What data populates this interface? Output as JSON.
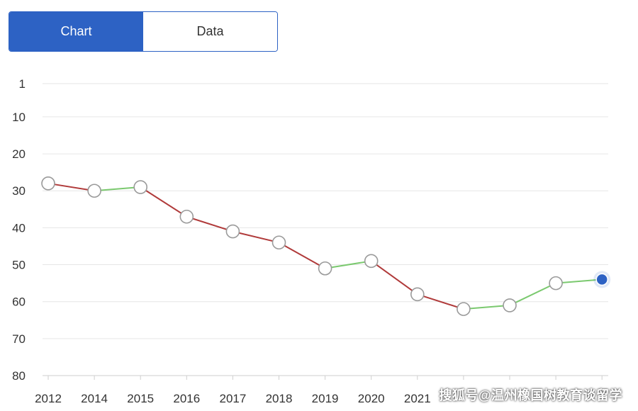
{
  "tabs": {
    "chart_label": "Chart",
    "data_label": "Data"
  },
  "colors": {
    "accent": "#2d62c4",
    "up": "#7bc96f",
    "down": "#b03a3a",
    "grid": "#e6e6e6",
    "axis_text": "#333333"
  },
  "chart_data": {
    "type": "line",
    "title": "",
    "xlabel": "",
    "ylabel": "",
    "y_inverted": true,
    "ylim": [
      1,
      80
    ],
    "yticks": [
      1,
      10,
      20,
      30,
      40,
      50,
      60,
      70,
      80
    ],
    "categories": [
      "2012",
      "2014",
      "2015",
      "2016",
      "2017",
      "2018",
      "2019",
      "2020",
      "2021",
      "",
      "",
      "",
      ""
    ],
    "values": [
      28,
      30,
      29,
      37,
      41,
      44,
      51,
      49,
      58,
      62,
      61,
      55,
      54
    ],
    "grid": true,
    "legend": "none"
  },
  "watermark": "搜狐号@温州橡国树教育谈留学"
}
